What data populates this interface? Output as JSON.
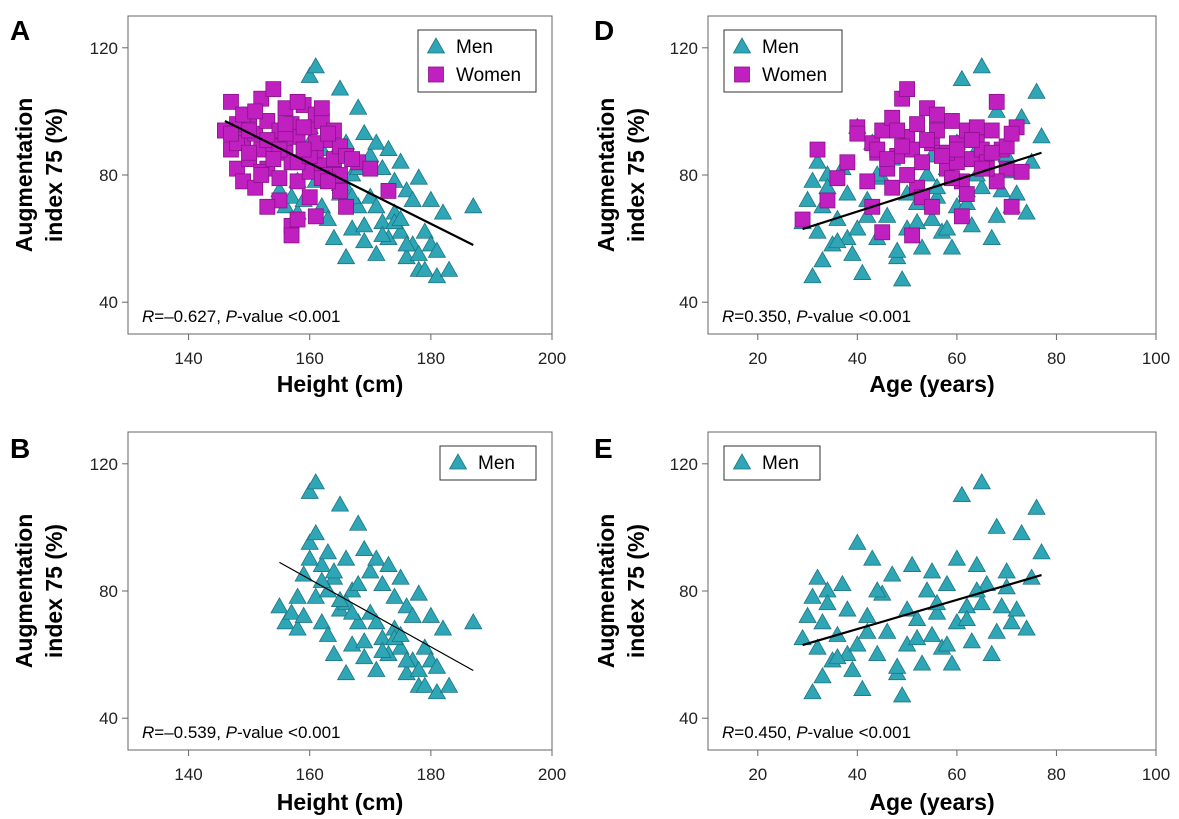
{
  "chart_data": [
    {
      "panel": "A",
      "type": "scatter",
      "xlabel": "Height (cm)",
      "ylabel_line1": "Augmentation",
      "ylabel_line2": "index 75 (%)",
      "xlim": [
        130,
        200
      ],
      "ylim": [
        30,
        130
      ],
      "xticks": [
        "140",
        "160",
        "180",
        "200"
      ],
      "yticks": [
        "40",
        "80",
        "120"
      ],
      "legend": [
        "Men",
        "Women"
      ],
      "legend_position": "top-right",
      "grid": false,
      "stat": {
        "r_label": "R",
        "r_value": "=–0.627, ",
        "p_label": "P",
        "p_value": "-value <0.001"
      },
      "trendline": {
        "x1": 146,
        "y1": 97,
        "x2": 187,
        "y2": 58,
        "width": 2.2
      },
      "series": [
        {
          "name": "Men",
          "marker": "triangle",
          "color": "#2fa6b6",
          "x": [
            155,
            156,
            157,
            158,
            158,
            159,
            159,
            160,
            160,
            161,
            161,
            162,
            162,
            163,
            163,
            164,
            164,
            165,
            165,
            166,
            166,
            167,
            167,
            168,
            168,
            169,
            169,
            170,
            170,
            171,
            171,
            172,
            172,
            173,
            173,
            174,
            174,
            175,
            175,
            176,
            176,
            177,
            177,
            178,
            178,
            179,
            179,
            180,
            180,
            181,
            181,
            182,
            183,
            187,
            163,
            166,
            168,
            171,
            174,
            176,
            160,
            162,
            165,
            169,
            172,
            175,
            178,
            161,
            164,
            167
          ],
          "y": [
            75,
            70,
            73,
            78,
            68,
            85,
            72,
            111,
            95,
            114,
            78,
            88,
            70,
            92,
            66,
            84,
            60,
            107,
            74,
            90,
            54,
            80,
            63,
            101,
            70,
            93,
            59,
            86,
            73,
            90,
            55,
            82,
            65,
            88,
            60,
            78,
            68,
            84,
            62,
            75,
            54,
            72,
            58,
            79,
            50,
            62,
            50,
            72,
            58,
            56,
            48,
            68,
            50,
            70,
            80,
            76,
            82,
            70,
            65,
            58,
            90,
            83,
            77,
            64,
            61,
            66,
            55,
            98,
            86,
            73
          ]
        },
        {
          "name": "Women",
          "marker": "square",
          "color": "#c020c0",
          "x": [
            146,
            147,
            147,
            148,
            148,
            149,
            149,
            150,
            150,
            151,
            151,
            152,
            152,
            153,
            153,
            154,
            154,
            155,
            155,
            156,
            156,
            157,
            157,
            158,
            158,
            159,
            159,
            160,
            160,
            161,
            161,
            162,
            162,
            163,
            163,
            164,
            164,
            165,
            165,
            166,
            166,
            168,
            170,
            173,
            148,
            150,
            152,
            154,
            156,
            158,
            160,
            162,
            150,
            155,
            157,
            159,
            161,
            163,
            149,
            153,
            155,
            165,
            167,
            151,
            156,
            158,
            160,
            146,
            154,
            157,
            159,
            161,
            153,
            147,
            163,
            162,
            152,
            156,
            158
          ],
          "y": [
            94,
            88,
            103,
            82,
            96,
            78,
            91,
            85,
            99,
            76,
            93,
            88,
            104,
            82,
            97,
            90,
            107,
            79,
            94,
            87,
            101,
            84,
            96,
            78,
            92,
            88,
            102,
            81,
            95,
            86,
            99,
            83,
            97,
            80,
            91,
            85,
            94,
            89,
            75,
            86,
            70,
            84,
            82,
            75,
            90,
            94,
            81,
            89,
            92,
            84,
            86,
            79,
            87,
            72,
            64,
            95,
            90,
            93,
            99,
            91,
            88,
            80,
            85,
            100,
            93,
            66,
            73,
            94,
            85,
            61,
            88,
            67,
            70,
            93,
            78,
            101,
            80,
            96,
            103
          ]
        }
      ]
    },
    {
      "panel": "D",
      "type": "scatter",
      "xlabel": "Age (years)",
      "ylabel_line1": "Augmentation",
      "ylabel_line2": "index 75 (%)",
      "xlim": [
        10,
        100
      ],
      "ylim": [
        30,
        130
      ],
      "xticks": [
        "20",
        "40",
        "60",
        "80",
        "100"
      ],
      "yticks": [
        "40",
        "80",
        "120"
      ],
      "legend": [
        "Men",
        "Women"
      ],
      "legend_position": "top-left",
      "grid": false,
      "stat": {
        "r_label": "R",
        "r_value": "=0.350, ",
        "p_label": "P",
        "p_value": "-value <0.001"
      },
      "trendline": {
        "x1": 29,
        "y1": 63,
        "x2": 77,
        "y2": 87,
        "width": 2.2
      },
      "series": [
        {
          "name": "Men",
          "marker": "triangle",
          "color": "#2fa6b6",
          "x": [
            29,
            30,
            31,
            31,
            32,
            32,
            33,
            33,
            34,
            35,
            36,
            37,
            38,
            38,
            39,
            40,
            40,
            41,
            42,
            43,
            44,
            45,
            46,
            47,
            48,
            49,
            50,
            50,
            51,
            52,
            53,
            54,
            55,
            55,
            56,
            57,
            58,
            59,
            60,
            60,
            61,
            62,
            63,
            64,
            65,
            65,
            66,
            67,
            68,
            69,
            70,
            71,
            72,
            73,
            74,
            75,
            76,
            77,
            34,
            36,
            42,
            44,
            48,
            52,
            56,
            58,
            62,
            64,
            68,
            70
          ],
          "y": [
            65,
            72,
            48,
            78,
            62,
            84,
            53,
            70,
            80,
            58,
            66,
            82,
            60,
            74,
            55,
            95,
            63,
            49,
            72,
            90,
            60,
            79,
            67,
            85,
            54,
            47,
            74,
            63,
            88,
            71,
            57,
            80,
            66,
            86,
            73,
            62,
            82,
            57,
            90,
            70,
            110,
            75,
            64,
            88,
            114,
            76,
            82,
            60,
            100,
            75,
            86,
            70,
            74,
            98,
            68,
            84,
            106,
            92,
            76,
            59,
            67,
            80,
            56,
            65,
            76,
            63,
            71,
            80,
            67,
            81
          ]
        },
        {
          "name": "Women",
          "marker": "square",
          "color": "#c020c0",
          "x": [
            29,
            32,
            34,
            36,
            38,
            40,
            42,
            43,
            44,
            45,
            46,
            47,
            48,
            49,
            50,
            50,
            51,
            52,
            53,
            54,
            55,
            56,
            57,
            58,
            59,
            60,
            61,
            62,
            63,
            64,
            65,
            66,
            67,
            68,
            69,
            70,
            71,
            72,
            73,
            40,
            44,
            48,
            52,
            56,
            60,
            64,
            68,
            46,
            50,
            54,
            58,
            62,
            66,
            70,
            47,
            53,
            57,
            61,
            65,
            43,
            49,
            51,
            59,
            63,
            67,
            71,
            45,
            55,
            60
          ],
          "y": [
            66,
            88,
            72,
            79,
            84,
            95,
            78,
            90,
            87,
            94,
            82,
            98,
            86,
            104,
            92,
            107,
            88,
            96,
            84,
            101,
            90,
            94,
            87,
            82,
            97,
            90,
            78,
            94,
            85,
            91,
            88,
            84,
            94,
            103,
            88,
            82,
            70,
            95,
            81,
            93,
            88,
            94,
            76,
            99,
            84,
            95,
            78,
            85,
            80,
            91,
            87,
            74,
            82,
            89,
            76,
            73,
            86,
            67,
            82,
            70,
            89,
            61,
            79,
            91,
            87,
            93,
            62,
            70,
            88
          ]
        }
      ]
    },
    {
      "panel": "B",
      "type": "scatter",
      "xlabel": "Height (cm)",
      "ylabel_line1": "Augmentation",
      "ylabel_line2": "index 75 (%)",
      "xlim": [
        130,
        200
      ],
      "ylim": [
        30,
        130
      ],
      "xticks": [
        "140",
        "160",
        "180",
        "200"
      ],
      "yticks": [
        "40",
        "80",
        "120"
      ],
      "legend": [
        "Men"
      ],
      "legend_position": "top-right",
      "grid": false,
      "stat": {
        "r_label": "R",
        "r_value": "=–0.539, ",
        "p_label": "P",
        "p_value": "-value <0.001"
      },
      "trendline": {
        "x1": 155,
        "y1": 89,
        "x2": 187,
        "y2": 55,
        "width": 1.2
      },
      "series": [
        {
          "name": "Men",
          "marker": "triangle",
          "color": "#2fa6b6",
          "x": [
            155,
            156,
            157,
            158,
            158,
            159,
            159,
            160,
            160,
            161,
            161,
            162,
            162,
            163,
            163,
            164,
            164,
            165,
            165,
            166,
            166,
            167,
            167,
            168,
            168,
            169,
            169,
            170,
            170,
            171,
            171,
            172,
            172,
            173,
            173,
            174,
            174,
            175,
            175,
            176,
            176,
            177,
            177,
            178,
            178,
            179,
            179,
            180,
            180,
            181,
            181,
            182,
            183,
            187,
            163,
            166,
            168,
            171,
            174,
            176,
            160,
            162,
            165,
            169,
            172,
            175,
            178,
            161,
            164,
            167
          ],
          "y": [
            75,
            70,
            73,
            78,
            68,
            85,
            72,
            111,
            95,
            114,
            78,
            88,
            70,
            92,
            66,
            84,
            60,
            107,
            74,
            90,
            54,
            80,
            63,
            101,
            70,
            93,
            59,
            86,
            73,
            90,
            55,
            82,
            65,
            88,
            60,
            78,
            68,
            84,
            62,
            75,
            54,
            72,
            58,
            79,
            50,
            62,
            50,
            72,
            58,
            56,
            48,
            68,
            50,
            70,
            80,
            76,
            82,
            70,
            65,
            58,
            90,
            83,
            77,
            64,
            61,
            66,
            55,
            98,
            86,
            73
          ]
        }
      ]
    },
    {
      "panel": "E",
      "type": "scatter",
      "xlabel": "Age (years)",
      "ylabel_line1": "Augmentation",
      "ylabel_line2": "index 75 (%)",
      "xlim": [
        10,
        100
      ],
      "ylim": [
        30,
        130
      ],
      "xticks": [
        "20",
        "40",
        "60",
        "80",
        "100"
      ],
      "yticks": [
        "40",
        "80",
        "120"
      ],
      "legend": [
        "Men"
      ],
      "legend_position": "top-left",
      "grid": false,
      "stat": {
        "r_label": "R",
        "r_value": "=0.450, ",
        "p_label": "P",
        "p_value": "-value <0.001"
      },
      "trendline": {
        "x1": 29,
        "y1": 63,
        "x2": 77,
        "y2": 85,
        "width": 2.2
      },
      "series": [
        {
          "name": "Men",
          "marker": "triangle",
          "color": "#2fa6b6",
          "x": [
            29,
            30,
            31,
            31,
            32,
            32,
            33,
            33,
            34,
            35,
            36,
            37,
            38,
            38,
            39,
            40,
            40,
            41,
            42,
            43,
            44,
            45,
            46,
            47,
            48,
            49,
            50,
            50,
            51,
            52,
            53,
            54,
            55,
            55,
            56,
            57,
            58,
            59,
            60,
            60,
            61,
            62,
            63,
            64,
            65,
            65,
            66,
            67,
            68,
            69,
            70,
            71,
            72,
            73,
            74,
            75,
            76,
            77,
            34,
            36,
            42,
            44,
            48,
            52,
            56,
            58,
            62,
            64,
            68,
            70
          ],
          "y": [
            65,
            72,
            48,
            78,
            62,
            84,
            53,
            70,
            80,
            58,
            66,
            82,
            60,
            74,
            55,
            95,
            63,
            49,
            72,
            90,
            60,
            79,
            67,
            85,
            54,
            47,
            74,
            63,
            88,
            71,
            57,
            80,
            66,
            86,
            73,
            62,
            82,
            57,
            90,
            70,
            110,
            75,
            64,
            88,
            114,
            76,
            82,
            60,
            100,
            75,
            86,
            70,
            74,
            98,
            68,
            84,
            106,
            92,
            76,
            59,
            67,
            80,
            56,
            65,
            76,
            63,
            71,
            80,
            67,
            81
          ]
        }
      ]
    }
  ]
}
